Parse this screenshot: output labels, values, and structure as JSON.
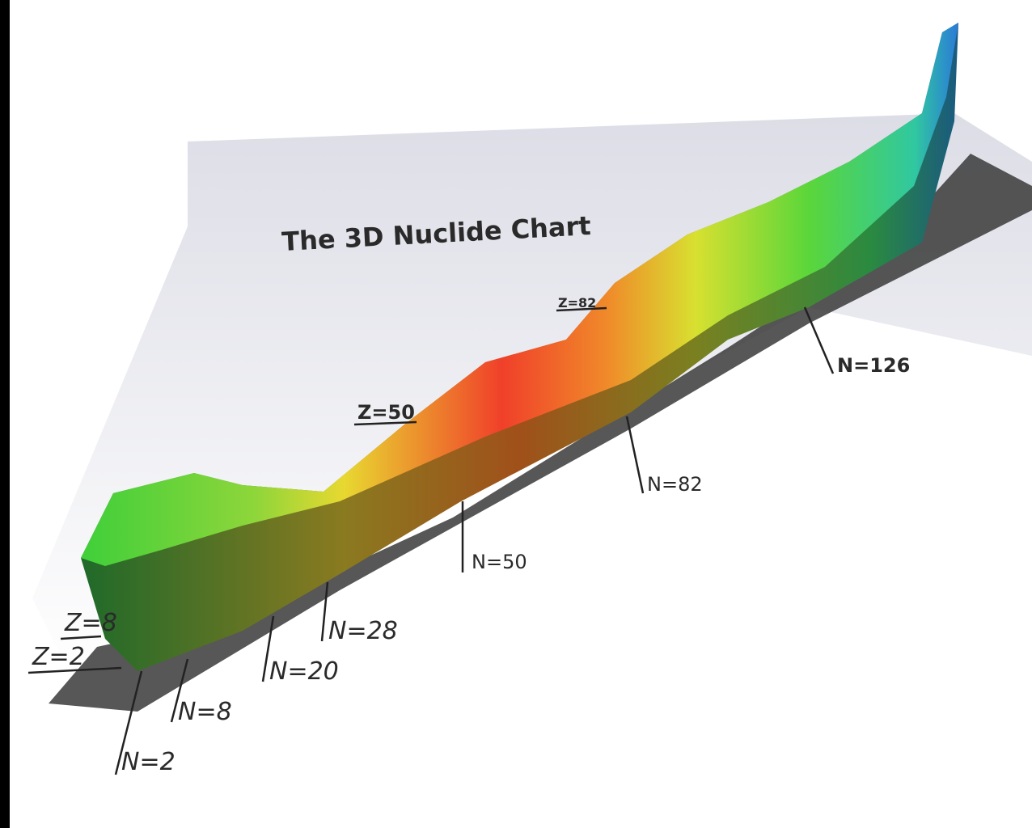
{
  "title": "The 3D Nuclide Chart",
  "proton_labels": [
    "Z=2",
    "Z=8",
    "Z=50",
    "Z=82"
  ],
  "neutron_labels": [
    "N=2",
    "N=8",
    "N=20",
    "N=28",
    "N=50",
    "N=82",
    "N=126"
  ]
}
